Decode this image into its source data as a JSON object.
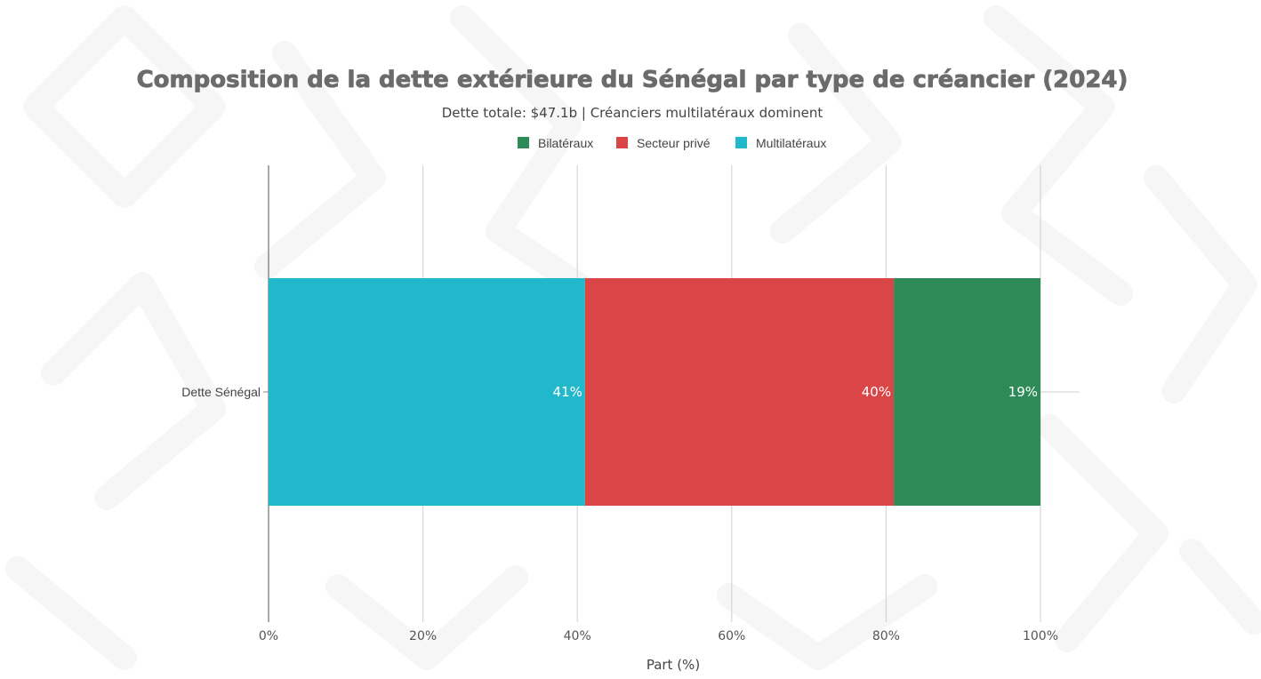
{
  "chart_data": {
    "type": "bar",
    "orientation": "horizontal",
    "stacked": true,
    "title": "Composition de la dette extérieure du Sénégal par type de créancier (2024)",
    "subtitle": "Dette totale: $47.1b | Créanciers multilatéraux dominent",
    "categories": [
      "Dette Sénégal"
    ],
    "series": [
      {
        "name": "Multilatéraux",
        "values": [
          41
        ],
        "label": "41%",
        "color": "#22b8cc"
      },
      {
        "name": "Secteur privé",
        "values": [
          40
        ],
        "label": "40%",
        "color": "#da4547"
      },
      {
        "name": "Bilatéraux",
        "values": [
          19
        ],
        "label": "19%",
        "color": "#2e8a57"
      }
    ],
    "legend_order": [
      "Bilatéraux",
      "Secteur privé",
      "Multilatéraux"
    ],
    "legend_position": "top-center",
    "xlabel": "Part (%)",
    "ylabel": "",
    "xlim": [
      0,
      100
    ],
    "xticks": [
      0,
      20,
      40,
      60,
      80,
      100
    ],
    "xtick_labels": [
      "0%",
      "20%",
      "40%",
      "60%",
      "80%",
      "100%"
    ],
    "grid": true
  }
}
